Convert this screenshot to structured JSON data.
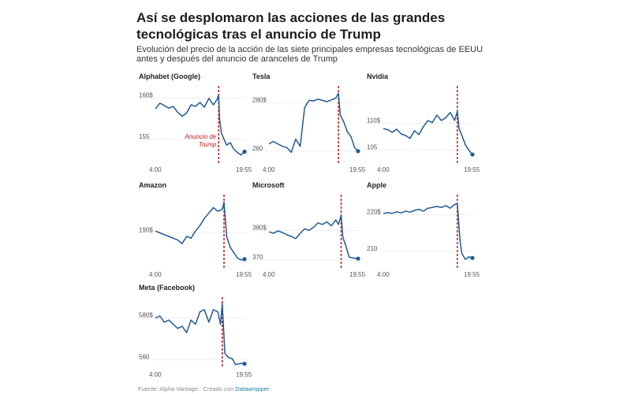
{
  "header": {
    "title": "Así se desplomaron las acciones de las grandes tecnológicas tras el anuncio de Trump",
    "subtitle": "Evolución del precio de la acción de las siete principales empresas tecnológicas de EEUU antes y después del anuncio de aranceles de Trump"
  },
  "footer": {
    "source_prefix": "Fuente: Alpha Vantage · Creado con ",
    "source_link": "Datawrapper"
  },
  "colors": {
    "line": "#1f5a96",
    "marker": "#c41a1a",
    "grid": "#d9d9d9"
  },
  "chart_data": [
    {
      "type": "line",
      "title": "Alphabet (Google)",
      "x_ticks": [
        "4:00",
        "19:55"
      ],
      "ylim": [
        152.3,
        161.5
      ],
      "y_ticks": [
        {
          "v": 160,
          "label": "160$"
        },
        {
          "v": 155,
          "label": "155"
        }
      ],
      "annotation": "Anuncio de Trump",
      "announce_at": 0.71,
      "x": [
        0,
        0.05,
        0.1,
        0.15,
        0.2,
        0.25,
        0.3,
        0.35,
        0.4,
        0.45,
        0.5,
        0.55,
        0.6,
        0.65,
        0.69,
        0.71,
        0.72,
        0.74,
        0.77,
        0.8,
        0.84,
        0.88,
        0.92,
        0.96,
        1
      ],
      "values": [
        158.7,
        159.4,
        159.1,
        158.8,
        159.0,
        158.3,
        157.8,
        158.2,
        159.2,
        159.0,
        159.5,
        158.9,
        160.0,
        159.2,
        159.8,
        160.4,
        157.5,
        155.8,
        155.0,
        154.3,
        154.6,
        153.8,
        153.4,
        153.1,
        153.5
      ]
    },
    {
      "type": "line",
      "title": "Tesla",
      "x_ticks": [
        "4:00",
        "19:55"
      ],
      "ylim": [
        255.7,
        287
      ],
      "y_ticks": [
        {
          "v": 280,
          "label": "280$"
        },
        {
          "v": 260,
          "label": "260"
        }
      ],
      "announce_at": 0.78,
      "x": [
        0,
        0.05,
        0.1,
        0.15,
        0.2,
        0.25,
        0.3,
        0.35,
        0.4,
        0.45,
        0.5,
        0.55,
        0.6,
        0.65,
        0.7,
        0.75,
        0.78,
        0.8,
        0.84,
        0.88,
        0.92,
        0.96,
        1
      ],
      "values": [
        263,
        264,
        263,
        262,
        261.5,
        259.5,
        265,
        262,
        278,
        281,
        280.8,
        281.5,
        281,
        280.5,
        281.2,
        282,
        284,
        275,
        272,
        268,
        266,
        261.5,
        260
      ]
    },
    {
      "type": "line",
      "title": "Nvidia",
      "x_ticks": [
        "4:00",
        "19:55"
      ],
      "ylim": [
        102.9,
        116.9
      ],
      "y_ticks": [
        {
          "v": 110,
          "label": "110$"
        },
        {
          "v": 105,
          "label": "105"
        }
      ],
      "announce_at": 0.83,
      "x": [
        0,
        0.05,
        0.1,
        0.15,
        0.2,
        0.25,
        0.3,
        0.35,
        0.4,
        0.45,
        0.5,
        0.55,
        0.6,
        0.65,
        0.7,
        0.75,
        0.8,
        0.83,
        0.85,
        0.88,
        0.92,
        0.96,
        1
      ],
      "values": [
        109.0,
        108.8,
        108.3,
        108.9,
        108.0,
        107.7,
        107.2,
        108.6,
        107.9,
        109.4,
        110.5,
        110.1,
        111.5,
        110.5,
        111.0,
        112.0,
        110.5,
        112.2,
        109,
        107.8,
        106,
        105,
        104.2
      ]
    },
    {
      "type": "line",
      "title": "Amazon",
      "x_ticks": [
        "4:00",
        "19:55"
      ],
      "ylim": [
        180.7,
        200.6
      ],
      "y_ticks": [
        {
          "v": 190,
          "label": "190$"
        }
      ],
      "announce_at": 0.77,
      "x": [
        0,
        0.05,
        0.1,
        0.15,
        0.2,
        0.25,
        0.3,
        0.35,
        0.4,
        0.45,
        0.5,
        0.55,
        0.6,
        0.65,
        0.7,
        0.75,
        0.77,
        0.8,
        0.84,
        0.88,
        0.92,
        0.96,
        1
      ],
      "values": [
        190.5,
        190,
        189.5,
        189,
        188.5,
        188,
        187,
        189,
        188.5,
        190.5,
        192,
        194,
        195.5,
        197,
        196,
        196.5,
        198.5,
        189,
        186,
        184.5,
        183,
        182.5,
        182.7
      ]
    },
    {
      "type": "line",
      "title": "Microsoft",
      "x_ticks": [
        "4:00",
        "19:55"
      ],
      "ylim": [
        367.9,
        392
      ],
      "y_ticks": [
        {
          "v": 380,
          "label": "380$"
        },
        {
          "v": 370,
          "label": "370"
        }
      ],
      "announce_at": 0.81,
      "x": [
        0,
        0.05,
        0.1,
        0.15,
        0.2,
        0.25,
        0.3,
        0.35,
        0.4,
        0.45,
        0.5,
        0.55,
        0.6,
        0.65,
        0.7,
        0.75,
        0.78,
        0.81,
        0.83,
        0.86,
        0.9,
        0.94,
        1
      ],
      "values": [
        379.5,
        379,
        379.8,
        379.3,
        378.5,
        378,
        377.2,
        379,
        380.5,
        380,
        381,
        382.5,
        382,
        382.8,
        381.5,
        383.5,
        382,
        385,
        377.5,
        375,
        371,
        370.7,
        370.5
      ]
    },
    {
      "type": "line",
      "title": "Apple",
      "x_ticks": [
        "4:00",
        "19:55"
      ],
      "ylim": [
        205.9,
        225.5
      ],
      "y_ticks": [
        {
          "v": 220,
          "label": "220$"
        },
        {
          "v": 210,
          "label": "210"
        }
      ],
      "announce_at": 0.83,
      "x": [
        0,
        0.05,
        0.1,
        0.15,
        0.2,
        0.25,
        0.3,
        0.35,
        0.4,
        0.45,
        0.5,
        0.55,
        0.6,
        0.65,
        0.7,
        0.75,
        0.8,
        0.83,
        0.86,
        0.88,
        0.92,
        0.96,
        1
      ],
      "values": [
        220.3,
        220.6,
        220.4,
        220.8,
        220.5,
        221,
        220.7,
        221.2,
        221.5,
        221,
        221.8,
        222,
        222.3,
        222,
        222.5,
        221.8,
        222.8,
        223,
        213,
        209.5,
        207.8,
        208.5,
        208.2
      ]
    },
    {
      "type": "line",
      "title": "Meta (Facebook)",
      "x_ticks": [
        "4:00",
        "19:55"
      ],
      "ylim": [
        556.7,
        590.1
      ],
      "y_ticks": [
        {
          "v": 580,
          "label": "580$"
        },
        {
          "v": 560,
          "label": "560"
        }
      ],
      "announce_at": 0.75,
      "x": [
        0,
        0.05,
        0.1,
        0.15,
        0.2,
        0.25,
        0.3,
        0.35,
        0.4,
        0.45,
        0.5,
        0.55,
        0.6,
        0.65,
        0.7,
        0.73,
        0.75,
        0.78,
        0.82,
        0.86,
        0.9,
        0.95,
        1
      ],
      "values": [
        580,
        581,
        578,
        579,
        577,
        575,
        576,
        573,
        579,
        577,
        583,
        584,
        578,
        584,
        583,
        577,
        587,
        563,
        561,
        560.5,
        557.6,
        558.1,
        558
      ]
    }
  ]
}
